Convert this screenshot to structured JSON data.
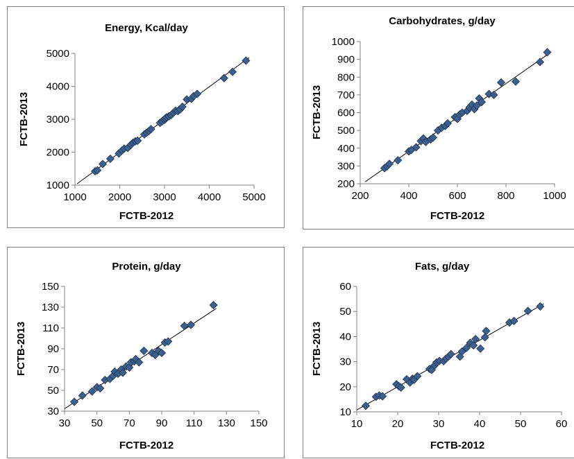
{
  "colors": {
    "marker_fill": "#3c5f8e",
    "marker_stroke": "#1f3552",
    "trendline": "#000000",
    "axis": "#808080"
  },
  "chart_data": [
    {
      "type": "scatter",
      "title": "Energy, Kcal/day",
      "xlabel": "FCTB-2012",
      "ylabel": "FCTB-2013",
      "xlim": [
        1000,
        5000
      ],
      "ylim": [
        1000,
        5000
      ],
      "xticks": [
        1000,
        2000,
        3000,
        4000,
        5000
      ],
      "yticks": [
        1000,
        2000,
        3000,
        4000,
        5000
      ],
      "xtick_labels": [
        "1000",
        "2000",
        "3000",
        "4000",
        "5000"
      ],
      "ytick_labels": [
        "1000",
        "2000",
        "3000",
        "4000",
        "5000"
      ],
      "trendline": true,
      "grid": false,
      "points": [
        [
          1450,
          1420
        ],
        [
          1500,
          1450
        ],
        [
          1620,
          1640
        ],
        [
          1790,
          1800
        ],
        [
          1980,
          1960
        ],
        [
          2050,
          2050
        ],
        [
          2100,
          2110
        ],
        [
          2180,
          2130
        ],
        [
          2250,
          2230
        ],
        [
          2300,
          2290
        ],
        [
          2350,
          2330
        ],
        [
          2400,
          2350
        ],
        [
          2550,
          2540
        ],
        [
          2600,
          2590
        ],
        [
          2650,
          2640
        ],
        [
          2700,
          2700
        ],
        [
          2900,
          2890
        ],
        [
          2950,
          2940
        ],
        [
          3000,
          2980
        ],
        [
          3020,
          3030
        ],
        [
          3050,
          3060
        ],
        [
          3100,
          3090
        ],
        [
          3150,
          3130
        ],
        [
          3200,
          3200
        ],
        [
          3250,
          3260
        ],
        [
          3300,
          3250
        ],
        [
          3350,
          3300
        ],
        [
          3400,
          3380
        ],
        [
          3500,
          3600
        ],
        [
          3600,
          3620
        ],
        [
          3650,
          3700
        ],
        [
          3730,
          3770
        ],
        [
          4330,
          4250
        ],
        [
          4520,
          4440
        ],
        [
          4820,
          4780
        ]
      ]
    },
    {
      "type": "scatter",
      "title": "Carbohydrates, g/day",
      "xlabel": "FCTB-2012",
      "ylabel": "FCTB-2013",
      "xlim": [
        200,
        1000
      ],
      "ylim": [
        200,
        1000
      ],
      "xticks": [
        200,
        400,
        600,
        800,
        1000
      ],
      "yticks": [
        200,
        300,
        400,
        500,
        600,
        700,
        800,
        900,
        1000
      ],
      "xtick_labels": [
        "200",
        "400",
        "600",
        "800",
        "1000"
      ],
      "ytick_labels": [
        "200",
        "300",
        "400",
        "500",
        "600",
        "700",
        "800",
        "900",
        "1000"
      ],
      "trendline": true,
      "grid": false,
      "points": [
        [
          300,
          288
        ],
        [
          310,
          298
        ],
        [
          320,
          312
        ],
        [
          355,
          332
        ],
        [
          400,
          382
        ],
        [
          410,
          390
        ],
        [
          430,
          405
        ],
        [
          450,
          440
        ],
        [
          460,
          455
        ],
        [
          470,
          435
        ],
        [
          490,
          450
        ],
        [
          500,
          460
        ],
        [
          520,
          500
        ],
        [
          535,
          515
        ],
        [
          550,
          525
        ],
        [
          560,
          540
        ],
        [
          590,
          575
        ],
        [
          600,
          565
        ],
        [
          610,
          590
        ],
        [
          620,
          600
        ],
        [
          640,
          610
        ],
        [
          650,
          630
        ],
        [
          660,
          645
        ],
        [
          670,
          620
        ],
        [
          680,
          640
        ],
        [
          690,
          680
        ],
        [
          700,
          660
        ],
        [
          730,
          705
        ],
        [
          750,
          700
        ],
        [
          780,
          770
        ],
        [
          840,
          775
        ],
        [
          940,
          885
        ],
        [
          970,
          940
        ]
      ]
    },
    {
      "type": "scatter",
      "title": "Protein, g/day",
      "xlabel": "FCTB-2012",
      "ylabel": "FCTB-2013",
      "xlim": [
        30,
        150
      ],
      "ylim": [
        30,
        150
      ],
      "xticks": [
        30,
        50,
        70,
        90,
        110,
        130,
        150
      ],
      "yticks": [
        30,
        50,
        70,
        90,
        110,
        130,
        150
      ],
      "xtick_labels": [
        "30",
        "50",
        "70",
        "90",
        "110",
        "130",
        "150"
      ],
      "ytick_labels": [
        "30",
        "50",
        "70",
        "90",
        "110",
        "130",
        "150"
      ],
      "trendline": true,
      "grid": false,
      "points": [
        [
          36,
          39
        ],
        [
          41,
          45
        ],
        [
          47,
          49
        ],
        [
          50,
          53
        ],
        [
          52,
          52
        ],
        [
          55,
          60
        ],
        [
          58,
          61
        ],
        [
          60,
          64
        ],
        [
          61,
          68
        ],
        [
          63,
          66
        ],
        [
          65,
          70
        ],
        [
          66,
          67
        ],
        [
          68,
          73
        ],
        [
          70,
          72
        ],
        [
          71,
          77
        ],
        [
          73,
          78
        ],
        [
          74,
          80
        ],
        [
          76,
          77
        ],
        [
          79,
          88
        ],
        [
          84,
          86
        ],
        [
          86,
          84
        ],
        [
          88,
          88
        ],
        [
          90,
          86
        ],
        [
          92,
          96
        ],
        [
          94,
          97
        ],
        [
          104,
          112
        ],
        [
          108,
          113
        ],
        [
          122,
          132
        ]
      ]
    },
    {
      "type": "scatter",
      "title": "Fats, g/day",
      "xlabel": "FCTB-2012",
      "ylabel": "FCTB-2013",
      "xlim": [
        10,
        60
      ],
      "ylim": [
        10,
        60
      ],
      "xticks": [
        10,
        20,
        30,
        40,
        50,
        60
      ],
      "yticks": [
        10,
        20,
        30,
        40,
        50,
        60
      ],
      "xtick_labels": [
        "10",
        "20",
        "30",
        "40",
        "50",
        "60"
      ],
      "ytick_labels": [
        "10",
        "20",
        "30",
        "40",
        "50",
        "60"
      ],
      "trendline": true,
      "grid": false,
      "points": [
        [
          12.2,
          12.4
        ],
        [
          14.7,
          16
        ],
        [
          15.5,
          16.5
        ],
        [
          16.3,
          16.2
        ],
        [
          19.7,
          21
        ],
        [
          20.3,
          20.2
        ],
        [
          20.8,
          19.7
        ],
        [
          22.2,
          23
        ],
        [
          23,
          21.7
        ],
        [
          23.6,
          23.2
        ],
        [
          24,
          22.8
        ],
        [
          24.8,
          24.2
        ],
        [
          27.8,
          27.1
        ],
        [
          28.3,
          26.7
        ],
        [
          29,
          28.5
        ],
        [
          29.5,
          29.7
        ],
        [
          30.2,
          30.3
        ],
        [
          31.2,
          30.2
        ],
        [
          31.8,
          31.2
        ],
        [
          32.4,
          32
        ],
        [
          33,
          33
        ],
        [
          35.2,
          32
        ],
        [
          35.7,
          34
        ],
        [
          36.8,
          35.5
        ],
        [
          37.7,
          37.5
        ],
        [
          38.5,
          36.5
        ],
        [
          39,
          39
        ],
        [
          40.2,
          35.2
        ],
        [
          41.3,
          39.7
        ],
        [
          41.6,
          42.2
        ],
        [
          47.3,
          45.6
        ],
        [
          48.4,
          46.2
        ],
        [
          51.8,
          50.2
        ],
        [
          54.8,
          52
        ]
      ]
    }
  ]
}
